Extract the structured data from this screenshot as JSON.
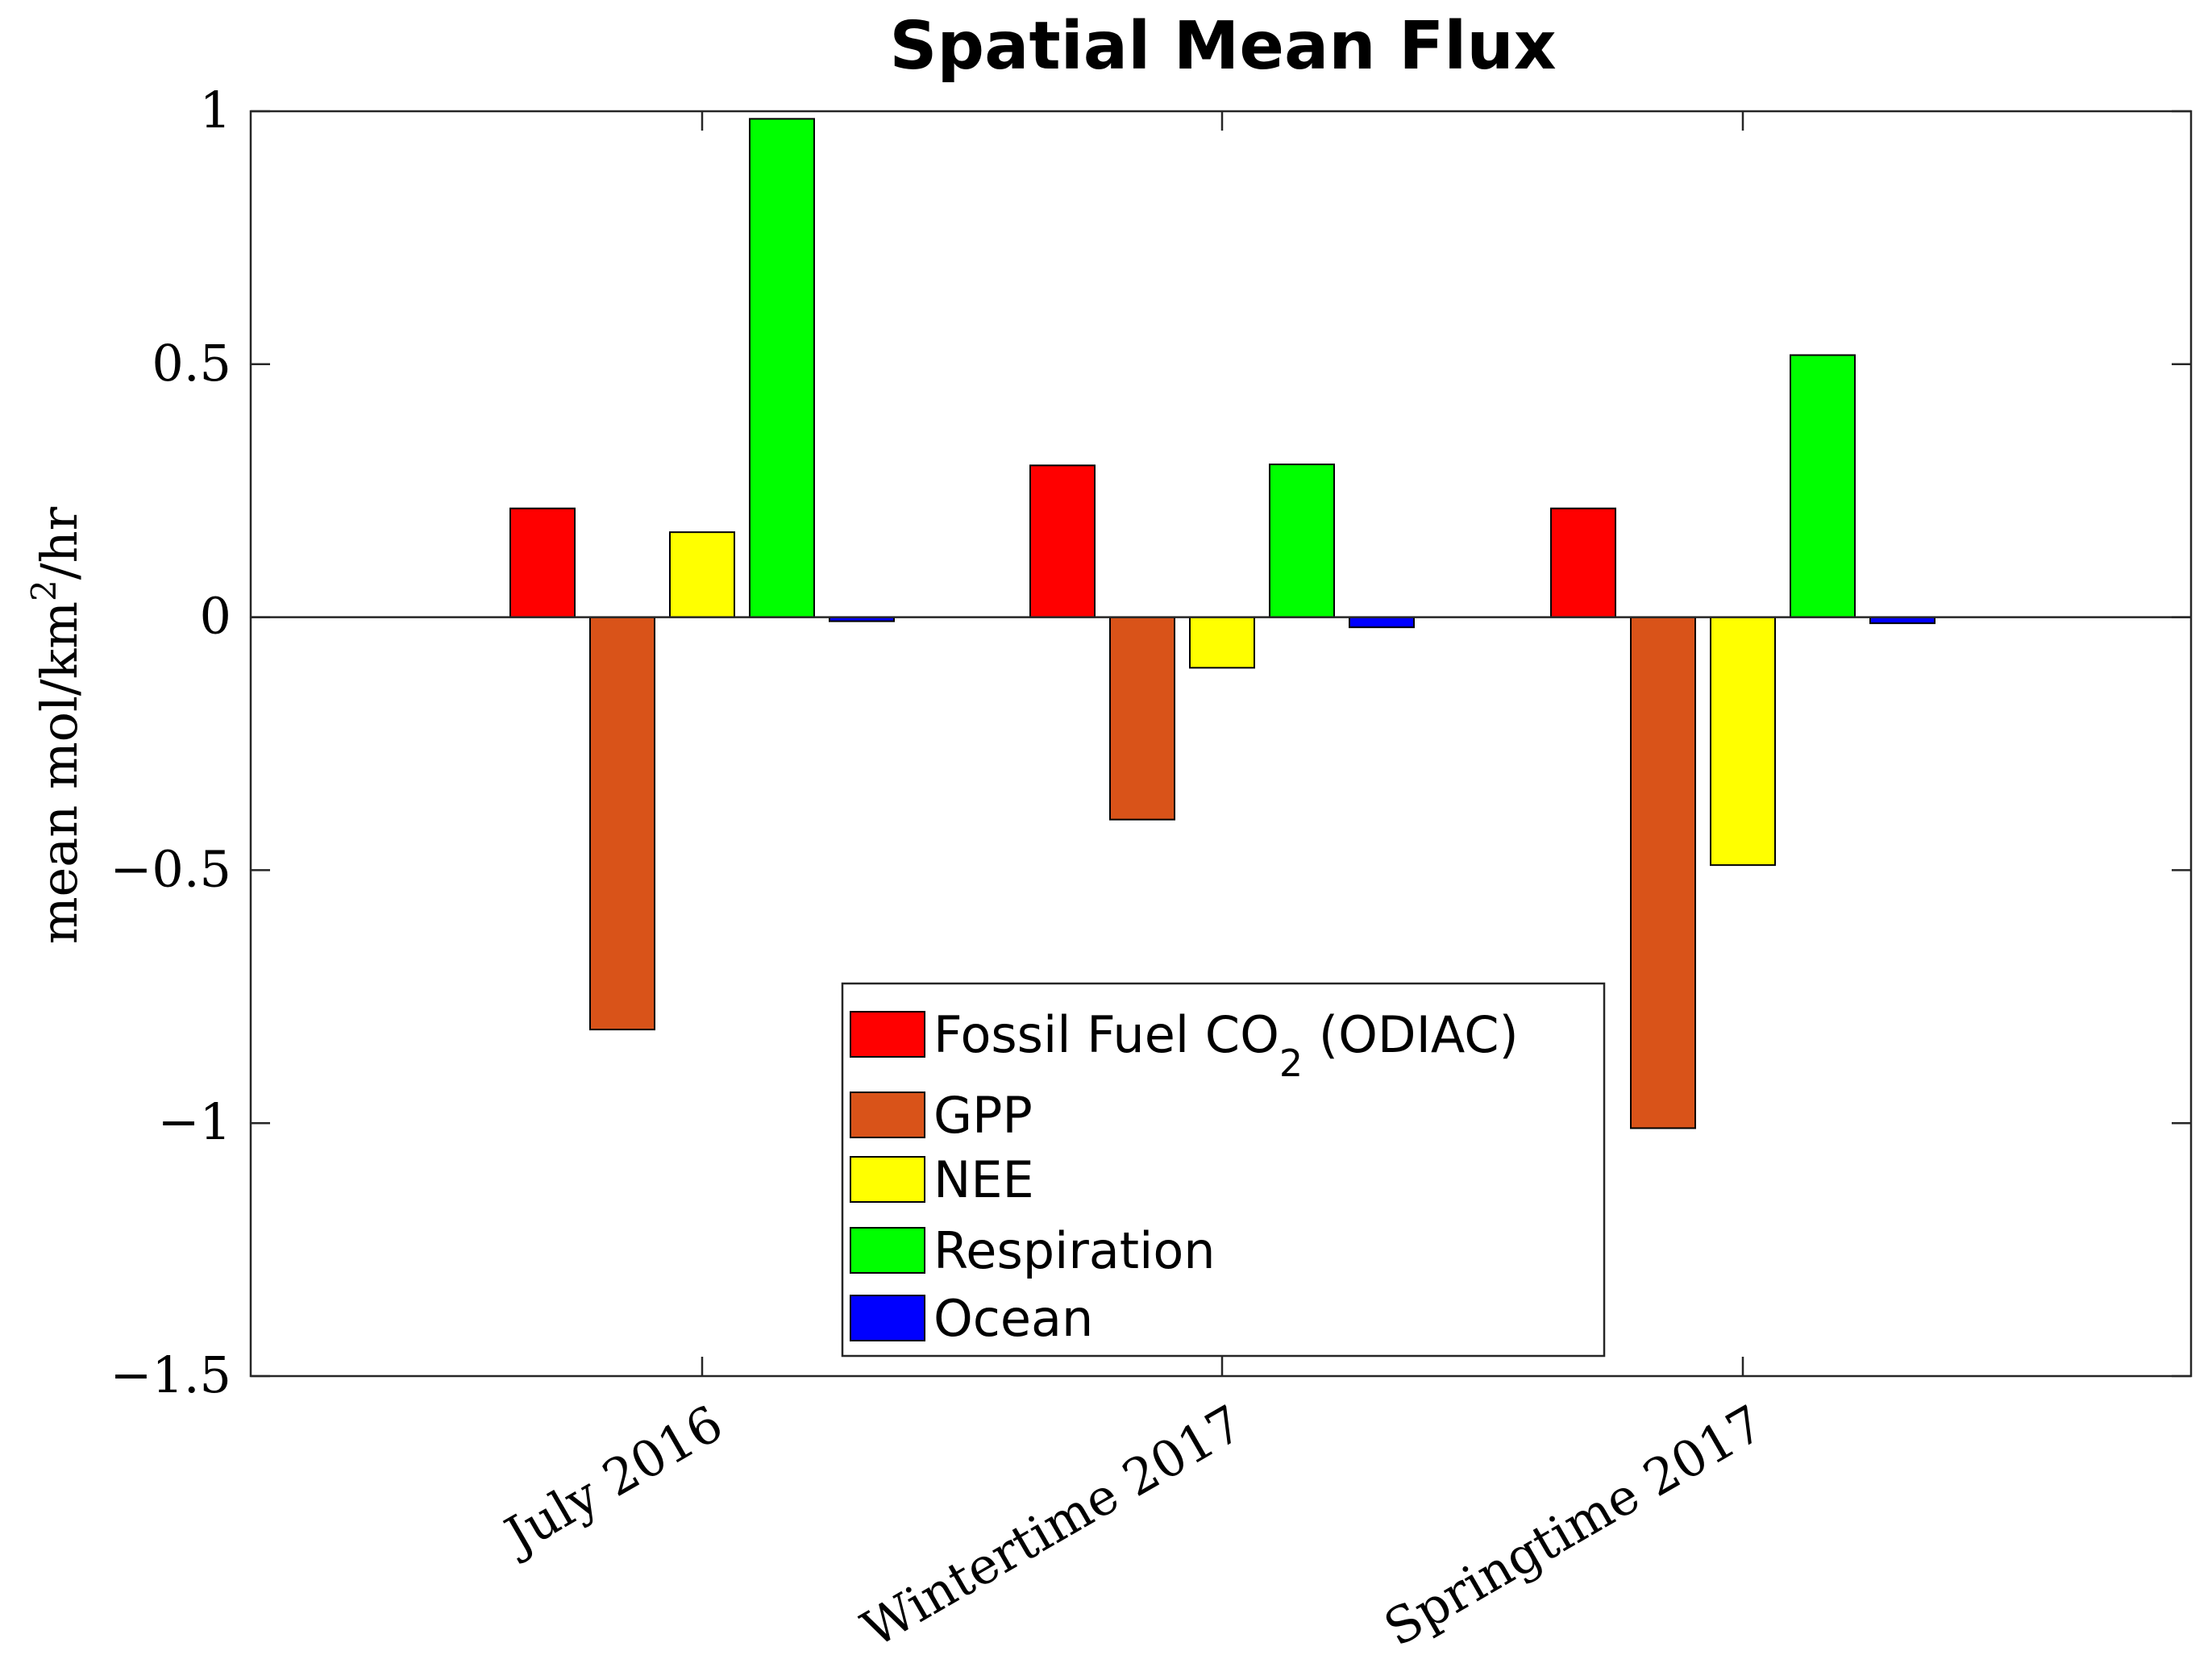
{
  "chart_data": {
    "type": "bar",
    "title": "Spatial Mean Flux",
    "xlabel": "",
    "ylabel": {
      "prefix": "mean mol/km",
      "superscript": "2",
      "suffix": "/hr"
    },
    "ylim": [
      -1.5,
      1
    ],
    "yticks": [
      1,
      0.5,
      0,
      -0.5,
      -1,
      -1.5
    ],
    "ytick_labels": [
      "1",
      "0.5",
      "0",
      "−0.5",
      "−1",
      "−1.5"
    ],
    "categories": [
      "July 2016",
      "Wintertime 2017",
      "Springtime 2017"
    ],
    "series": [
      {
        "name": "Fossil Fuel CO2 (ODIAC)",
        "color": "#ff0000",
        "values": [
          0.215,
          0.3,
          0.215
        ]
      },
      {
        "name": "GPP",
        "color": "#d95319",
        "values": [
          -0.815,
          -0.4,
          -1.01
        ]
      },
      {
        "name": "NEE",
        "color": "#ffff00",
        "values": [
          0.168,
          -0.1,
          -0.49
        ]
      },
      {
        "name": "Respiration",
        "color": "#00ff00",
        "values": [
          0.985,
          0.302,
          0.518
        ]
      },
      {
        "name": "Ocean",
        "color": "#0000ff",
        "values": [
          -0.008,
          -0.02,
          -0.012
        ]
      }
    ],
    "legend": {
      "position": "bottom-center",
      "entries": [
        {
          "label_main": "Fossil Fuel CO",
          "label_sub": "2",
          "label_tail": " (ODIAC)"
        },
        {
          "label_main": "GPP"
        },
        {
          "label_main": "NEE"
        },
        {
          "label_main": "Respiration"
        },
        {
          "label_main": "Ocean"
        }
      ]
    },
    "grid": false
  }
}
